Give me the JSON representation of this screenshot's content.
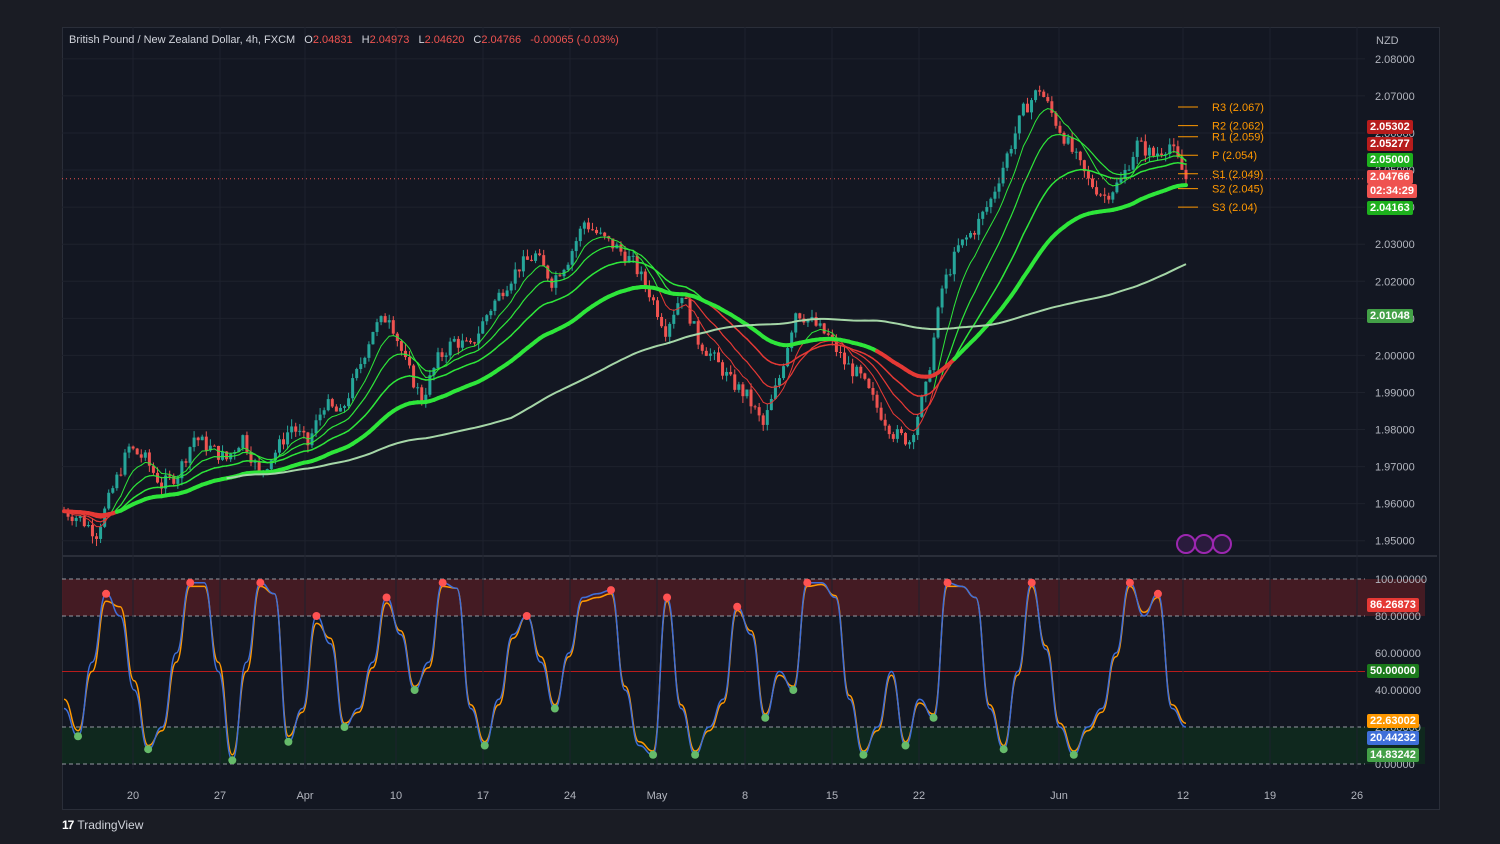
{
  "legend": {
    "symbol": "British Pound / New Zealand Dollar, 4h, FXCM",
    "o_label": "O",
    "o_value": "2.04831",
    "h_label": "H",
    "h_value": "2.04973",
    "l_label": "L",
    "l_value": "2.04620",
    "c_label": "C",
    "c_value": "2.04766",
    "change": "-0.00065 (-0.03%)"
  },
  "currency": "NZD",
  "branding": {
    "logo": "17",
    "name": "TradingView"
  },
  "colors": {
    "background": "#131722",
    "bull": "#26a69a",
    "bear": "#ef5350",
    "ema_green": "#2ee63a",
    "ema_red": "#e53935",
    "sma_long": "#a5d6a7",
    "pivot": "#ff9800",
    "stoch_k": "#3f6fd9",
    "stoch_d": "#ff9800",
    "overbought_zone": "#4a1c24",
    "oversold_zone": "#0f2a1e"
  },
  "chart_data": [
    {
      "type": "candlestick",
      "title": "British Pound / New Zealand Dollar, 4h, FXCM",
      "xlabel": "",
      "ylabel": "NZD",
      "x_ticks": [
        "20",
        "27",
        "Apr",
        "10",
        "17",
        "24",
        "May",
        "8",
        "15",
        "22",
        "Jun",
        "12",
        "19",
        "26"
      ],
      "y_ticks": [
        "2.08000",
        "2.07000",
        "2.06000",
        "2.05000",
        "2.04000",
        "2.03000",
        "2.02000",
        "2.01000",
        "2.00000",
        "1.99000",
        "1.98000",
        "1.97000",
        "1.96000",
        "1.95000"
      ],
      "ylim": [
        1.9475,
        2.0805
      ],
      "last_close": 2.04766,
      "close_path": [
        [
          0,
          1.958
        ],
        [
          2,
          1.956
        ],
        [
          4,
          1.952
        ],
        [
          5,
          1.958
        ],
        [
          6,
          1.964
        ],
        [
          8,
          1.975
        ],
        [
          10,
          1.972
        ],
        [
          12,
          1.965
        ],
        [
          14,
          1.968
        ],
        [
          16,
          1.978
        ],
        [
          18,
          1.975
        ],
        [
          20,
          1.972
        ],
        [
          22,
          1.978
        ],
        [
          24,
          1.968
        ],
        [
          26,
          1.974
        ],
        [
          28,
          1.981
        ],
        [
          30,
          1.976
        ],
        [
          32,
          1.987
        ],
        [
          34,
          1.984
        ],
        [
          36,
          1.995
        ],
        [
          38,
          2.007
        ],
        [
          40,
          2.011
        ],
        [
          42,
          1.998
        ],
        [
          44,
          1.988
        ],
        [
          46,
          1.999
        ],
        [
          48,
          2.004
        ],
        [
          50,
          2.002
        ],
        [
          52,
          2.011
        ],
        [
          54,
          2.018
        ],
        [
          56,
          2.024
        ],
        [
          58,
          2.027
        ],
        [
          60,
          2.02
        ],
        [
          62,
          2.026
        ],
        [
          64,
          2.036
        ],
        [
          66,
          2.032
        ],
        [
          68,
          2.029
        ],
        [
          70,
          2.025
        ],
        [
          72,
          2.017
        ],
        [
          74,
          2.007
        ],
        [
          76,
          2.017
        ],
        [
          78,
          2.004
        ],
        [
          80,
          1.999
        ],
        [
          82,
          1.993
        ],
        [
          84,
          1.989
        ],
        [
          86,
          1.981
        ],
        [
          88,
          1.994
        ],
        [
          90,
          2.012
        ],
        [
          92,
          2.009
        ],
        [
          94,
          2.005
        ],
        [
          96,
          1.998
        ],
        [
          98,
          1.994
        ],
        [
          100,
          1.986
        ],
        [
          102,
          1.979
        ],
        [
          104,
          1.977
        ],
        [
          106,
          1.991
        ],
        [
          108,
          2.018
        ],
        [
          110,
          2.029
        ],
        [
          112,
          2.034
        ],
        [
          114,
          2.042
        ],
        [
          116,
          2.054
        ],
        [
          118,
          2.066
        ],
        [
          120,
          2.072
        ],
        [
          122,
          2.063
        ],
        [
          124,
          2.055
        ],
        [
          126,
          2.047
        ],
        [
          128,
          2.043
        ],
        [
          130,
          2.047
        ],
        [
          132,
          2.057
        ],
        [
          134,
          2.054
        ],
        [
          136,
          2.057
        ],
        [
          138,
          2.0477
        ]
      ],
      "indicators": {
        "ema_fast_last": 2.05,
        "sma_long_last": 2.01048,
        "ema_200_last": 2.04163
      },
      "pivots": [
        {
          "label": "R3 (2.067)",
          "value": 2.067
        },
        {
          "label": "R2 (2.062)",
          "value": 2.062
        },
        {
          "label": "R1 (2.059)",
          "value": 2.059
        },
        {
          "label": "P (2.054)",
          "value": 2.054
        },
        {
          "label": "S1 (2.049)",
          "value": 2.049
        },
        {
          "label": "S2 (2.045)",
          "value": 2.045
        },
        {
          "label": "S3 (2.04)",
          "value": 2.04
        }
      ],
      "price_tags": [
        {
          "text": "2.05302",
          "color": "#b71c1c"
        },
        {
          "text": "2.05277",
          "color": "#b71c1c"
        },
        {
          "text": "2.05000",
          "color": "#1db01d"
        },
        {
          "text": "2.04766",
          "color": "#ef5350"
        },
        {
          "text": "02:34:29",
          "color": "#ef5350"
        },
        {
          "text": "2.04163",
          "color": "#1db01d"
        },
        {
          "text": "2.01048",
          "color": "#43a047"
        }
      ]
    },
    {
      "type": "line",
      "title": "",
      "y_ticks": [
        "100.00000",
        "80.00000",
        "60.00000",
        "40.00000",
        "20.00000",
        "0.00000"
      ],
      "ylim": [
        0,
        100
      ],
      "levels": [
        80,
        50,
        20
      ],
      "series": [
        {
          "values": [
            30,
            15,
            55,
            92,
            80,
            40,
            8,
            20,
            60,
            98,
            98,
            50,
            2,
            55,
            98,
            92,
            12,
            30,
            80,
            65,
            20,
            30,
            55,
            90,
            70,
            40,
            55,
            98,
            95,
            30,
            10,
            35,
            70,
            80,
            55,
            30,
            60,
            90,
            92,
            94,
            40,
            10,
            5,
            90,
            30,
            5,
            20,
            35,
            85,
            70,
            25,
            50,
            40,
            98,
            98,
            90,
            35,
            5,
            20,
            50,
            10,
            35,
            25,
            98,
            96,
            90,
            30,
            8,
            50,
            98,
            62,
            20,
            5,
            20,
            30,
            60,
            98,
            80,
            92,
            30,
            20
          ]
        },
        {
          "values": [
            35,
            18,
            50,
            88,
            85,
            45,
            10,
            18,
            55,
            96,
            96,
            55,
            5,
            50,
            96,
            92,
            15,
            28,
            76,
            68,
            22,
            28,
            52,
            87,
            72,
            42,
            52,
            96,
            95,
            32,
            12,
            32,
            68,
            80,
            58,
            32,
            58,
            88,
            90,
            92,
            42,
            12,
            7,
            88,
            32,
            7,
            18,
            33,
            83,
            72,
            27,
            48,
            42,
            96,
            97,
            91,
            37,
            7,
            18,
            48,
            12,
            33,
            27,
            96,
            96,
            90,
            32,
            10,
            48,
            96,
            64,
            22,
            7,
            18,
            28,
            58,
            96,
            82,
            90,
            32,
            22
          ]
        }
      ],
      "price_tags": [
        {
          "text": "86.26873",
          "color": "#e53935"
        },
        {
          "text": "50.00000",
          "color": "#1b7a1b"
        },
        {
          "text": "22.63002",
          "color": "#ff9800"
        },
        {
          "text": "20.44232",
          "color": "#3f6fd9"
        },
        {
          "text": "14.83242",
          "color": "#43a047"
        }
      ]
    }
  ]
}
